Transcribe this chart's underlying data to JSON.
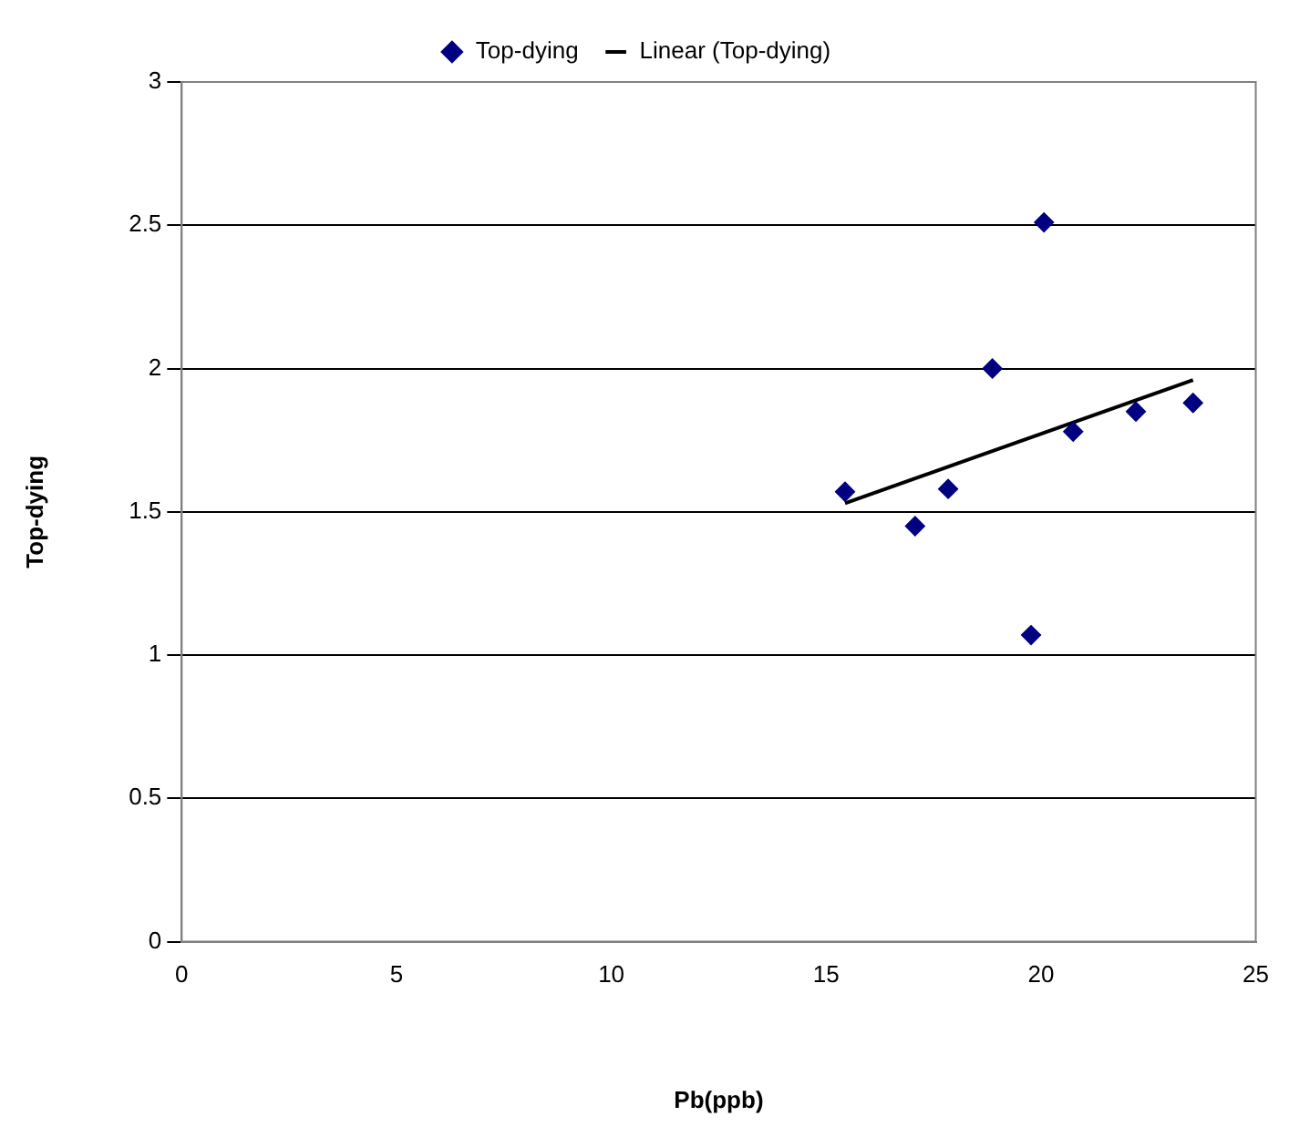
{
  "chart_data": {
    "type": "scatter",
    "xlabel": "Pb(ppb)",
    "ylabel": "Top-dying",
    "series": [
      {
        "name": "Top-dying",
        "type": "scatter",
        "color": "#000080",
        "marker": "diamond",
        "x": [
          15.44,
          17.07,
          17.84,
          18.87,
          19.77,
          20.07,
          20.75,
          22.21,
          23.54
        ],
        "values": [
          1.57,
          1.45,
          1.58,
          2.0,
          1.07,
          2.51,
          1.78,
          1.85,
          1.88
        ]
      },
      {
        "name": "Linear (Top-dying)",
        "type": "line",
        "color": "#000000",
        "marker": "none",
        "line_style": "solid",
        "x": [
          15.44,
          23.54
        ],
        "values": [
          1.53,
          1.96
        ]
      }
    ],
    "xlim": [
      0,
      25
    ],
    "xticks": [
      0,
      5,
      10,
      15,
      20,
      25
    ],
    "ylim": [
      0,
      3
    ],
    "yticks": [
      0,
      0.5,
      1,
      1.5,
      2,
      2.5,
      3
    ],
    "grid": "y",
    "legend": "top"
  }
}
